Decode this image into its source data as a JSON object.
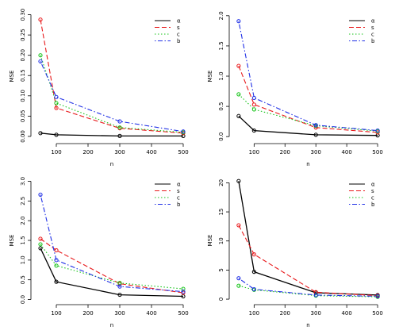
{
  "chart_data": [
    {
      "type": "line",
      "xlabel": "n",
      "ylabel": "MSE",
      "x": [
        50,
        100,
        300,
        500
      ],
      "xlim": [
        40,
        510
      ],
      "ylim": [
        -0.008,
        0.305
      ],
      "xticks": [
        0,
        100,
        200,
        300,
        400,
        500
      ],
      "yticks": [
        0.0,
        0.05,
        0.1,
        0.15,
        0.2,
        0.25,
        0.3
      ],
      "ytick_labels": [
        "0.00",
        "0.05",
        "0.10",
        "0.15",
        "0.20",
        "0.25",
        "0.30"
      ],
      "series": [
        {
          "name": "α",
          "color": "#000000",
          "dash": "solid",
          "values": [
            0.008,
            0.004,
            0.001,
            0.001
          ]
        },
        {
          "name": "s",
          "color": "#e8191b",
          "dash": "dashed",
          "values": [
            0.288,
            0.07,
            0.02,
            0.008
          ]
        },
        {
          "name": "c",
          "color": "#17c41a",
          "dash": "dotted",
          "values": [
            0.2,
            0.082,
            0.022,
            0.01
          ]
        },
        {
          "name": "b",
          "color": "#1f2fe6",
          "dash": "dotdash",
          "values": [
            0.185,
            0.097,
            0.037,
            0.012
          ]
        }
      ],
      "legend": "top-right"
    },
    {
      "type": "line",
      "xlabel": "n",
      "ylabel": "MSE",
      "x": [
        50,
        100,
        300,
        500
      ],
      "xlim": [
        40,
        510
      ],
      "ylim": [
        -0.05,
        2.05
      ],
      "xticks": [
        0,
        100,
        200,
        300,
        400,
        500
      ],
      "yticks": [
        0.0,
        0.5,
        1.0,
        1.5,
        2.0
      ],
      "ytick_labels": [
        "0.0",
        "0.5",
        "1.0",
        "1.5",
        "2.0"
      ],
      "series": [
        {
          "name": "α",
          "color": "#000000",
          "dash": "solid",
          "values": [
            0.34,
            0.1,
            0.03,
            0.02
          ]
        },
        {
          "name": "s",
          "color": "#e8191b",
          "dash": "dashed",
          "values": [
            1.17,
            0.53,
            0.15,
            0.07
          ]
        },
        {
          "name": "c",
          "color": "#17c41a",
          "dash": "dotted",
          "values": [
            0.7,
            0.45,
            0.18,
            0.09
          ]
        },
        {
          "name": "b",
          "color": "#1f2fe6",
          "dash": "dotdash",
          "values": [
            1.91,
            0.64,
            0.19,
            0.1
          ]
        }
      ],
      "legend": "top-right"
    },
    {
      "type": "line",
      "xlabel": "n",
      "ylabel": "MSE",
      "x": [
        50,
        100,
        300,
        500
      ],
      "xlim": [
        40,
        510
      ],
      "ylim": [
        -0.05,
        3.05
      ],
      "xticks": [
        0,
        100,
        200,
        300,
        400,
        500
      ],
      "yticks": [
        0.0,
        0.5,
        1.0,
        1.5,
        2.0,
        2.5,
        3.0
      ],
      "ytick_labels": [
        "0.0",
        "0.5",
        "1.0",
        "1.5",
        "2.0",
        "2.5",
        "3.0"
      ],
      "series": [
        {
          "name": "α",
          "color": "#000000",
          "dash": "solid",
          "values": [
            1.3,
            0.45,
            0.12,
            0.08
          ]
        },
        {
          "name": "s",
          "color": "#e8191b",
          "dash": "dashed",
          "values": [
            1.54,
            1.25,
            0.4,
            0.17
          ]
        },
        {
          "name": "c",
          "color": "#17c41a",
          "dash": "dotted",
          "values": [
            1.4,
            0.86,
            0.42,
            0.27
          ]
        },
        {
          "name": "b",
          "color": "#1f2fe6",
          "dash": "dotdash",
          "values": [
            2.66,
            1.0,
            0.33,
            0.2
          ]
        }
      ],
      "legend": "top-right"
    },
    {
      "type": "line",
      "xlabel": "n",
      "ylabel": "MSE",
      "x": [
        50,
        100,
        300,
        500
      ],
      "xlim": [
        40,
        510
      ],
      "ylim": [
        -0.4,
        20.6
      ],
      "xticks": [
        0,
        100,
        200,
        300,
        400,
        500
      ],
      "yticks": [
        0,
        5,
        10,
        15,
        20
      ],
      "ytick_labels": [
        "0",
        "5",
        "10",
        "15",
        "20"
      ],
      "series": [
        {
          "name": "α",
          "color": "#000000",
          "dash": "solid",
          "values": [
            20.3,
            4.7,
            1.1,
            0.7
          ]
        },
        {
          "name": "s",
          "color": "#e8191b",
          "dash": "dashed",
          "values": [
            12.7,
            7.7,
            1.2,
            0.6
          ]
        },
        {
          "name": "c",
          "color": "#17c41a",
          "dash": "dotted",
          "values": [
            2.3,
            1.6,
            0.6,
            0.4
          ]
        },
        {
          "name": "b",
          "color": "#1f2fe6",
          "dash": "dotdash",
          "values": [
            3.6,
            1.7,
            0.7,
            0.5
          ]
        }
      ],
      "legend": "top-right"
    }
  ]
}
